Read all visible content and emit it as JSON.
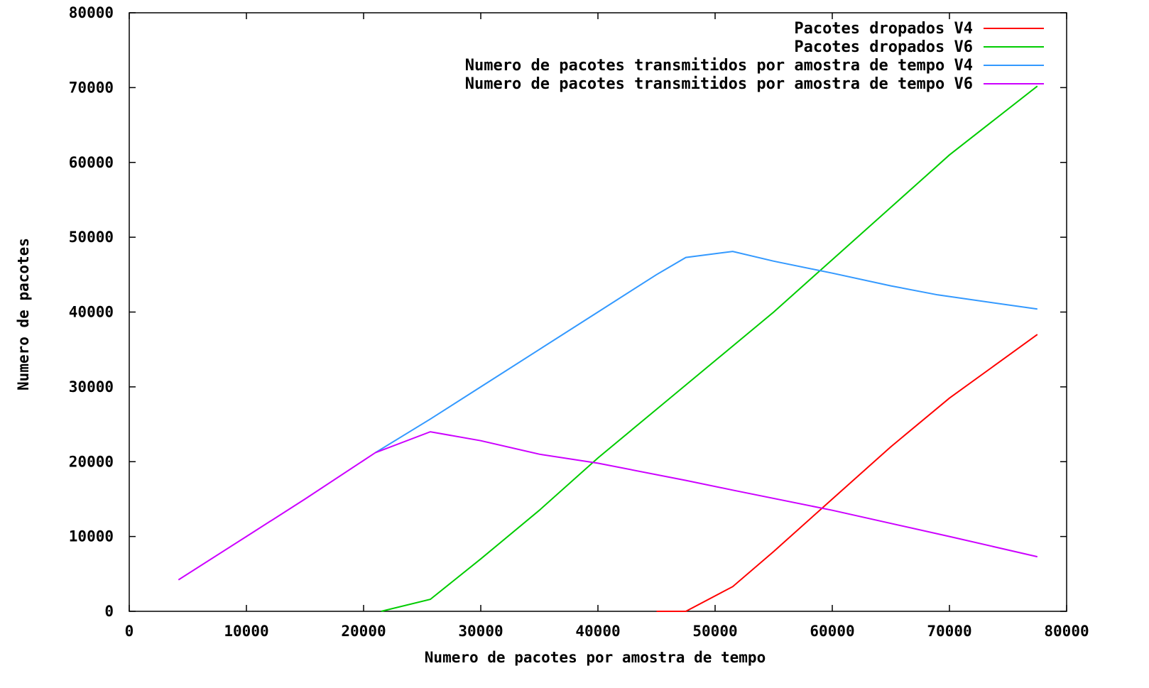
{
  "chart_data": {
    "type": "line",
    "title": "",
    "xlabel": "Numero de pacotes por amostra de tempo",
    "ylabel": "Numero de pacotes",
    "xlim": [
      0,
      80000
    ],
    "ylim": [
      0,
      80000
    ],
    "xticks": [
      0,
      10000,
      20000,
      30000,
      40000,
      50000,
      60000,
      70000,
      80000
    ],
    "yticks": [
      0,
      10000,
      20000,
      30000,
      40000,
      50000,
      60000,
      70000,
      80000
    ],
    "xtick_labels": [
      "0",
      "10000",
      "20000",
      "30000",
      "40000",
      "50000",
      "60000",
      "70000",
      "80000"
    ],
    "ytick_labels": [
      "0",
      "10000",
      "20000",
      "30000",
      "40000",
      "50000",
      "60000",
      "70000",
      "80000"
    ],
    "grid": false,
    "legend_position": "top-right",
    "series": [
      {
        "name": "Pacotes dropados V4",
        "color": "#ff0000",
        "x": [
          45000,
          47500,
          51500,
          55000,
          60000,
          65000,
          70000,
          77500
        ],
        "y": [
          0,
          0,
          3300,
          8000,
          15000,
          22000,
          28500,
          37000
        ]
      },
      {
        "name": "Pacotes dropados V6",
        "color": "#00cc00",
        "x": [
          21500,
          25700,
          30000,
          35000,
          40000,
          45000,
          50000,
          55000,
          60000,
          65000,
          70000,
          77500
        ],
        "y": [
          0,
          1600,
          7000,
          13500,
          20500,
          27000,
          33500,
          40000,
          47000,
          54000,
          61000,
          70200
        ]
      },
      {
        "name": "Numero de pacotes transmitidos por amostra de tempo V4",
        "color": "#3399ff",
        "x": [
          21000,
          25700,
          30000,
          35000,
          40000,
          45000,
          47500,
          51500,
          55000,
          60000,
          65000,
          69000,
          77500
        ],
        "y": [
          21200,
          25700,
          30000,
          35000,
          40000,
          45000,
          47300,
          48100,
          46800,
          45200,
          43500,
          42300,
          40400
        ]
      },
      {
        "name": "Numero de pacotes transmitidos por amostra de tempo V6",
        "color": "#cc00ff",
        "x": [
          4200,
          10000,
          15000,
          21000,
          25700,
          30000,
          35000,
          40000,
          47500,
          51500,
          60000,
          70000,
          77500
        ],
        "y": [
          4200,
          10000,
          15000,
          21200,
          24000,
          22800,
          21000,
          19800,
          17500,
          16200,
          13500,
          10000,
          7300
        ]
      }
    ]
  }
}
